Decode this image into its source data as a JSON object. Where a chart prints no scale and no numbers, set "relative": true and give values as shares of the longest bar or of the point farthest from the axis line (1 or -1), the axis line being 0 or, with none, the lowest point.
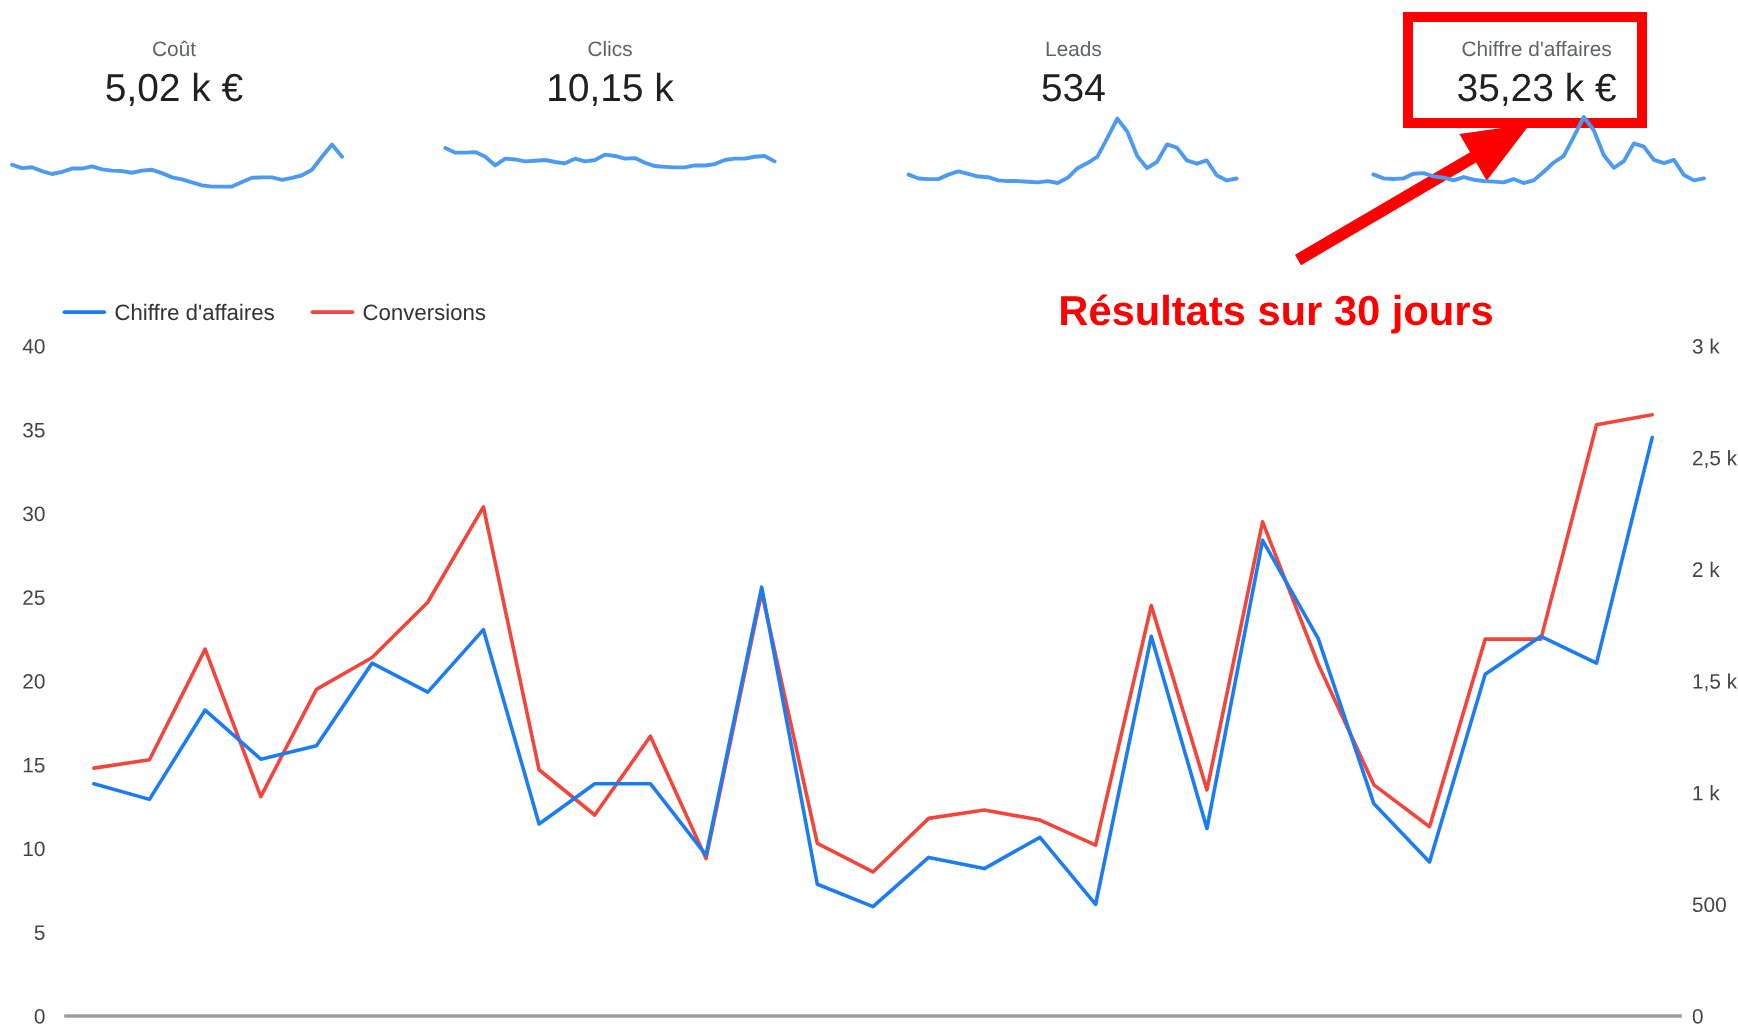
{
  "chart_data": [
    {
      "type": "line",
      "relative": true,
      "title": "Coût",
      "subtitle": "5,02 k €",
      "categories": [
        null,
        null,
        null,
        null,
        null,
        null,
        null,
        null,
        null,
        null,
        null,
        null,
        null,
        null,
        null,
        null,
        null,
        null,
        null,
        null,
        null,
        null,
        null,
        null,
        null,
        null,
        null,
        null,
        null,
        null,
        null,
        null,
        null,
        null
      ],
      "series": [
        {
          "color": "#4d9bf0",
          "values": [
            0.52,
            0.44,
            0.46,
            0.37,
            0.3,
            0.35,
            0.43,
            0.43,
            0.48,
            0.41,
            0.38,
            0.37,
            0.33,
            0.38,
            0.4,
            0.32,
            0.22,
            0.17,
            0.1,
            0.03,
            0,
            0,
            0,
            0.11,
            0.21,
            0.22,
            0.22,
            0.16,
            0.21,
            0.27,
            0.4,
            0.71,
            1,
            0.71
          ]
        }
      ]
    },
    {
      "type": "line",
      "relative": true,
      "title": "Clics",
      "subtitle": "10,15 k",
      "categories": [
        null,
        null,
        null,
        null,
        null,
        null,
        null,
        null,
        null,
        null,
        null,
        null,
        null,
        null,
        null,
        null,
        null,
        null,
        null,
        null,
        null,
        null,
        null,
        null,
        null,
        null,
        null,
        null,
        null,
        null,
        null,
        null,
        null,
        null
      ],
      "series": [
        {
          "color": "#4d9bf0",
          "values": [
            1,
            0.76,
            0.76,
            0.79,
            0.55,
            0.1,
            0.45,
            0.41,
            0.31,
            0.34,
            0.38,
            0.28,
            0.21,
            0.45,
            0.31,
            0.38,
            0.66,
            0.59,
            0.45,
            0.48,
            0.24,
            0.07,
            0.03,
            0,
            0,
            0.1,
            0.1,
            0.17,
            0.38,
            0.45,
            0.45,
            0.55,
            0.59,
            0.31
          ]
        }
      ]
    },
    {
      "type": "line",
      "relative": true,
      "title": "Leads",
      "subtitle": "534",
      "categories": [
        null,
        null,
        null,
        null,
        null,
        null,
        null,
        null,
        null,
        null,
        null,
        null,
        null,
        null,
        null,
        null,
        null,
        null,
        null,
        null,
        null,
        null,
        null,
        null,
        null,
        null,
        null,
        null,
        null,
        null,
        null,
        null,
        null,
        null
      ],
      "series": [
        {
          "color": "#4d9bf0",
          "values": [
            0.13,
            0.07,
            0.06,
            0.06,
            0.13,
            0.18,
            0.14,
            0.1,
            0.09,
            0.04,
            0.03,
            0.03,
            0.02,
            0.01,
            0.03,
            0,
            0.08,
            0.23,
            0.31,
            0.41,
            0.7,
            1,
            0.8,
            0.42,
            0.23,
            0.33,
            0.6,
            0.55,
            0.35,
            0.3,
            0.35,
            0.12,
            0.04,
            0.07
          ]
        }
      ]
    },
    {
      "type": "line",
      "relative": true,
      "title": "Chiffre d'affaires",
      "subtitle": "35,23 k €",
      "categories": [
        null,
        null,
        null,
        null,
        null,
        null,
        null,
        null,
        null,
        null,
        null,
        null,
        null,
        null,
        null,
        null,
        null,
        null,
        null,
        null,
        null,
        null,
        null,
        null,
        null,
        null,
        null,
        null,
        null,
        null,
        null,
        null,
        null,
        null
      ],
      "series": [
        {
          "color": "#4d9bf0",
          "values": [
            0.13,
            0.07,
            0.06,
            0.07,
            0.14,
            0.15,
            0.1,
            0.08,
            0.04,
            0.09,
            0.05,
            0.03,
            0.02,
            0.01,
            0.06,
            0,
            0.04,
            0.17,
            0.31,
            0.41,
            0.7,
            1,
            0.8,
            0.42,
            0.23,
            0.33,
            0.6,
            0.55,
            0.35,
            0.3,
            0.35,
            0.12,
            0.04,
            0.07
          ]
        }
      ]
    },
    {
      "type": "line",
      "categories": [
        null,
        null,
        null,
        null,
        null,
        null,
        null,
        null,
        null,
        null,
        null,
        null,
        null,
        null,
        null,
        null,
        null,
        null,
        null,
        null,
        null,
        null,
        null,
        null,
        null,
        null,
        null,
        null,
        null
      ],
      "series": [
        {
          "name": "Chiffre d'affaires",
          "color": "#1c7cf2",
          "axis": "y2",
          "values": [
            1040,
            970,
            1370,
            1150,
            1210,
            1580,
            1450,
            1730,
            860,
            1040,
            1040,
            720,
            1920,
            590,
            490,
            710,
            660,
            800,
            500,
            1700,
            840,
            2130,
            1690,
            950,
            690,
            1530,
            1700,
            1580,
            2590
          ]
        },
        {
          "name": "Conversions",
          "color": "#f2463d",
          "values": [
            14.8,
            15.3,
            21.9,
            13.1,
            19.5,
            21.4,
            24.7,
            30.4,
            14.7,
            12.0,
            16.7,
            9.4,
            25.3,
            10.3,
            8.6,
            11.8,
            12.3,
            11.7,
            10.2,
            24.5,
            13.5,
            29.5,
            21.0,
            13.8,
            11.3,
            22.5,
            22.5,
            35.3,
            35.9
          ]
        }
      ],
      "ylim": [
        0,
        40
      ],
      "yticks": [
        0,
        5,
        10,
        15,
        20,
        25,
        30,
        35,
        40
      ],
      "y2lim": [
        0,
        3000
      ],
      "y2ticks": [
        0,
        500,
        {
          "value": 1000,
          "label": "1 k"
        },
        {
          "value": 1500,
          "label": "1,5 k"
        },
        {
          "value": 2000,
          "label": "2 k"
        },
        {
          "value": 2500,
          "label": "2,5 k"
        },
        {
          "value": 3000,
          "label": "3 k"
        }
      ],
      "legend": "top left",
      "annotations": [
        "Résultats sur 30 jours"
      ]
    }
  ]
}
